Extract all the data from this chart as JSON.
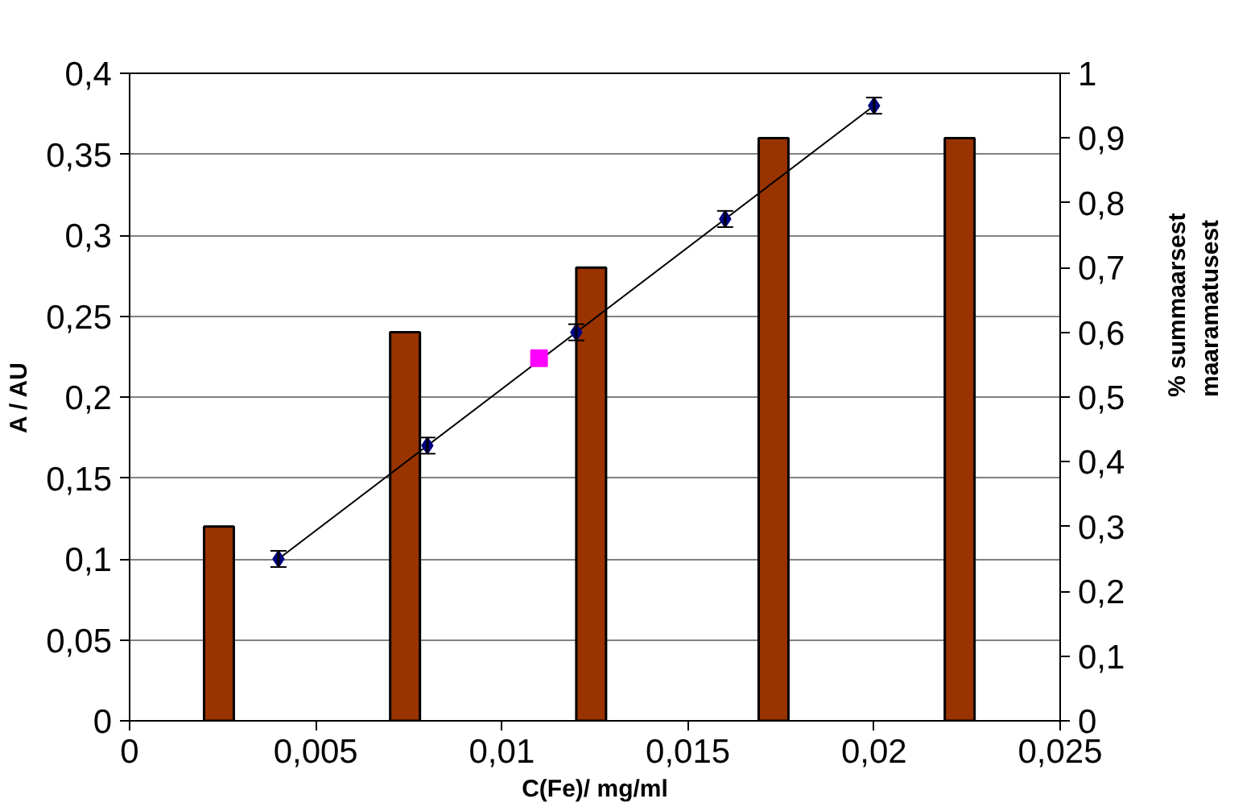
{
  "chart_data": {
    "type": "scatter",
    "xlabel": "C(Fe)/ mg/ml",
    "ylabel": "A / AU",
    "y2label": "% summaarsest\nmaaramatusest",
    "xlim": [
      0,
      0.025
    ],
    "xticks": [
      {
        "value": 0,
        "label": "0"
      },
      {
        "value": 0.005,
        "label": "0,005"
      },
      {
        "value": 0.01,
        "label": "0,01"
      },
      {
        "value": 0.015,
        "label": "0,015"
      },
      {
        "value": 0.02,
        "label": "0,02"
      },
      {
        "value": 0.025,
        "label": "0,025"
      }
    ],
    "ylim": [
      0,
      0.4
    ],
    "yticks": [
      {
        "value": 0,
        "label": "0"
      },
      {
        "value": 0.05,
        "label": "0,05"
      },
      {
        "value": 0.1,
        "label": "0,1"
      },
      {
        "value": 0.15,
        "label": "0,15"
      },
      {
        "value": 0.2,
        "label": "0,2"
      },
      {
        "value": 0.25,
        "label": "0,25"
      },
      {
        "value": 0.3,
        "label": "0,3"
      },
      {
        "value": 0.35,
        "label": "0,35"
      },
      {
        "value": 0.4,
        "label": "0,4"
      }
    ],
    "y2lim": [
      0,
      1
    ],
    "y2ticks": [
      {
        "value": 0,
        "label": "0"
      },
      {
        "value": 0.1,
        "label": "0,1"
      },
      {
        "value": 0.2,
        "label": "0,2"
      },
      {
        "value": 0.3,
        "label": "0,3"
      },
      {
        "value": 0.4,
        "label": "0,4"
      },
      {
        "value": 0.5,
        "label": "0,5"
      },
      {
        "value": 0.6,
        "label": "0,6"
      },
      {
        "value": 0.7,
        "label": "0,7"
      },
      {
        "value": 0.8,
        "label": "0,8"
      },
      {
        "value": 0.9,
        "label": "0,9"
      },
      {
        "value": 1,
        "label": "1"
      }
    ],
    "grid": "y",
    "series": [
      {
        "type": "bar",
        "axis": "y2",
        "color": "#993300",
        "x": [
          0.0024,
          0.0074,
          0.0124,
          0.0173,
          0.0223
        ],
        "values": [
          0.3,
          0.6,
          0.7,
          0.9,
          0.9
        ]
      },
      {
        "type": "line",
        "color": "#000000",
        "x": [
          0.004,
          0.02
        ],
        "values": [
          0.1,
          0.38
        ],
        "marker": "none"
      },
      {
        "color": "#000080",
        "marker": "diamond",
        "x": [
          0.004,
          0.008,
          0.012,
          0.016,
          0.02
        ],
        "values": [
          0.1,
          0.17,
          0.24,
          0.31,
          0.38
        ],
        "errors": [
          0.005,
          0.005,
          0.005,
          0.005,
          0.005
        ]
      },
      {
        "color": "#ff00ff",
        "marker": "square",
        "x": [
          0.011
        ],
        "values": [
          0.224
        ]
      }
    ]
  }
}
